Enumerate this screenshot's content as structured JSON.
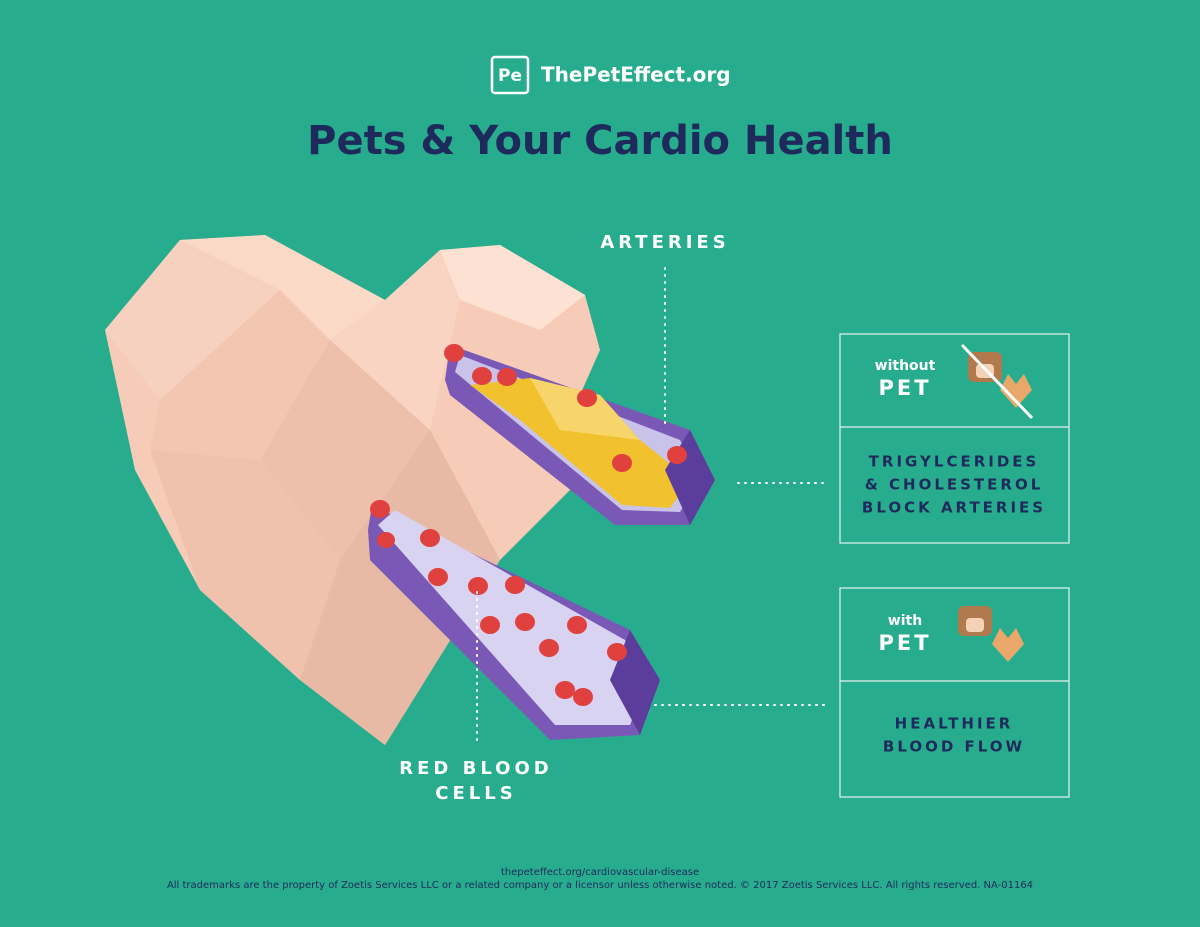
{
  "logo": {
    "mark": "Pe",
    "site": "ThePetEffect.org"
  },
  "title": "Pets & Your Cardio Health",
  "labels": {
    "arteries": "ARTERIES",
    "red_blood_cells": [
      "RED BLOOD",
      "CELLS"
    ]
  },
  "panels": [
    {
      "prefix": "without",
      "pet": "PET",
      "text": [
        "TRIGYLCERIDES",
        "& CHOLESTEROL",
        "BLOCK ARTERIES"
      ]
    },
    {
      "prefix": "with",
      "pet": "PET",
      "text": [
        "HEALTHIER",
        "BLOOD FLOW"
      ]
    }
  ],
  "footer": {
    "url": "thepeteffect.org/cardiovascular-disease",
    "legal": "All trademarks are the property of Zoetis Services LLC or a related company or a licensor unless otherwise noted. © 2017 Zoetis Services LLC.  All rights reserved.  NA-01164"
  }
}
